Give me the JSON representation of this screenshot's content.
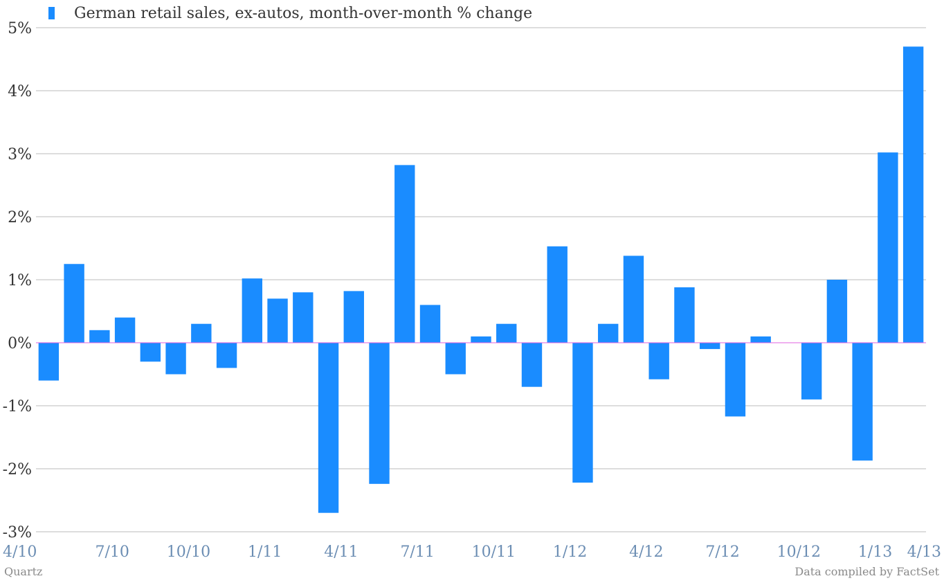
{
  "chart_data": {
    "type": "bar",
    "legend": {
      "label": "German retail sales, ex-autos, month-over-month % change",
      "placement": "top-left"
    },
    "series": [
      {
        "name": "German retail sales, ex-autos, month-over-month % change",
        "values": [
          -0.6,
          1.25,
          0.2,
          0.4,
          -0.3,
          -0.5,
          0.3,
          -0.4,
          1.02,
          0.7,
          0.8,
          -2.7,
          0.82,
          -2.24,
          2.82,
          0.6,
          -0.5,
          0.1,
          0.3,
          -0.7,
          1.53,
          -2.22,
          0.3,
          1.38,
          -0.58,
          0.88,
          -0.1,
          -1.17,
          0.1,
          0.0,
          -0.9,
          1.0,
          -1.87,
          3.02,
          4.7
        ]
      }
    ],
    "x_tick_labels": [
      "4/10",
      "7/10",
      "10/10",
      "1/11",
      "4/11",
      "7/11",
      "10/11",
      "1/12",
      "4/12",
      "7/12",
      "10/12",
      "1/13",
      "4/13"
    ],
    "y_ticks": [
      5,
      4,
      3,
      2,
      1,
      0,
      -1,
      -2,
      -3
    ],
    "y_tick_labels": [
      "5%",
      "4%",
      "3%",
      "2%",
      "1%",
      "0%",
      "-1%",
      "-2%",
      "-3%"
    ],
    "ylim": [
      -3,
      5
    ],
    "grid": true,
    "colors": {
      "bar": "#1a8cff",
      "zero_line": "#e060e0",
      "grid": "#bbbbbb",
      "x_tick": "#6b8db3"
    }
  },
  "footer": {
    "source_left": "Quartz",
    "source_right": "Data compiled by FactSet"
  }
}
